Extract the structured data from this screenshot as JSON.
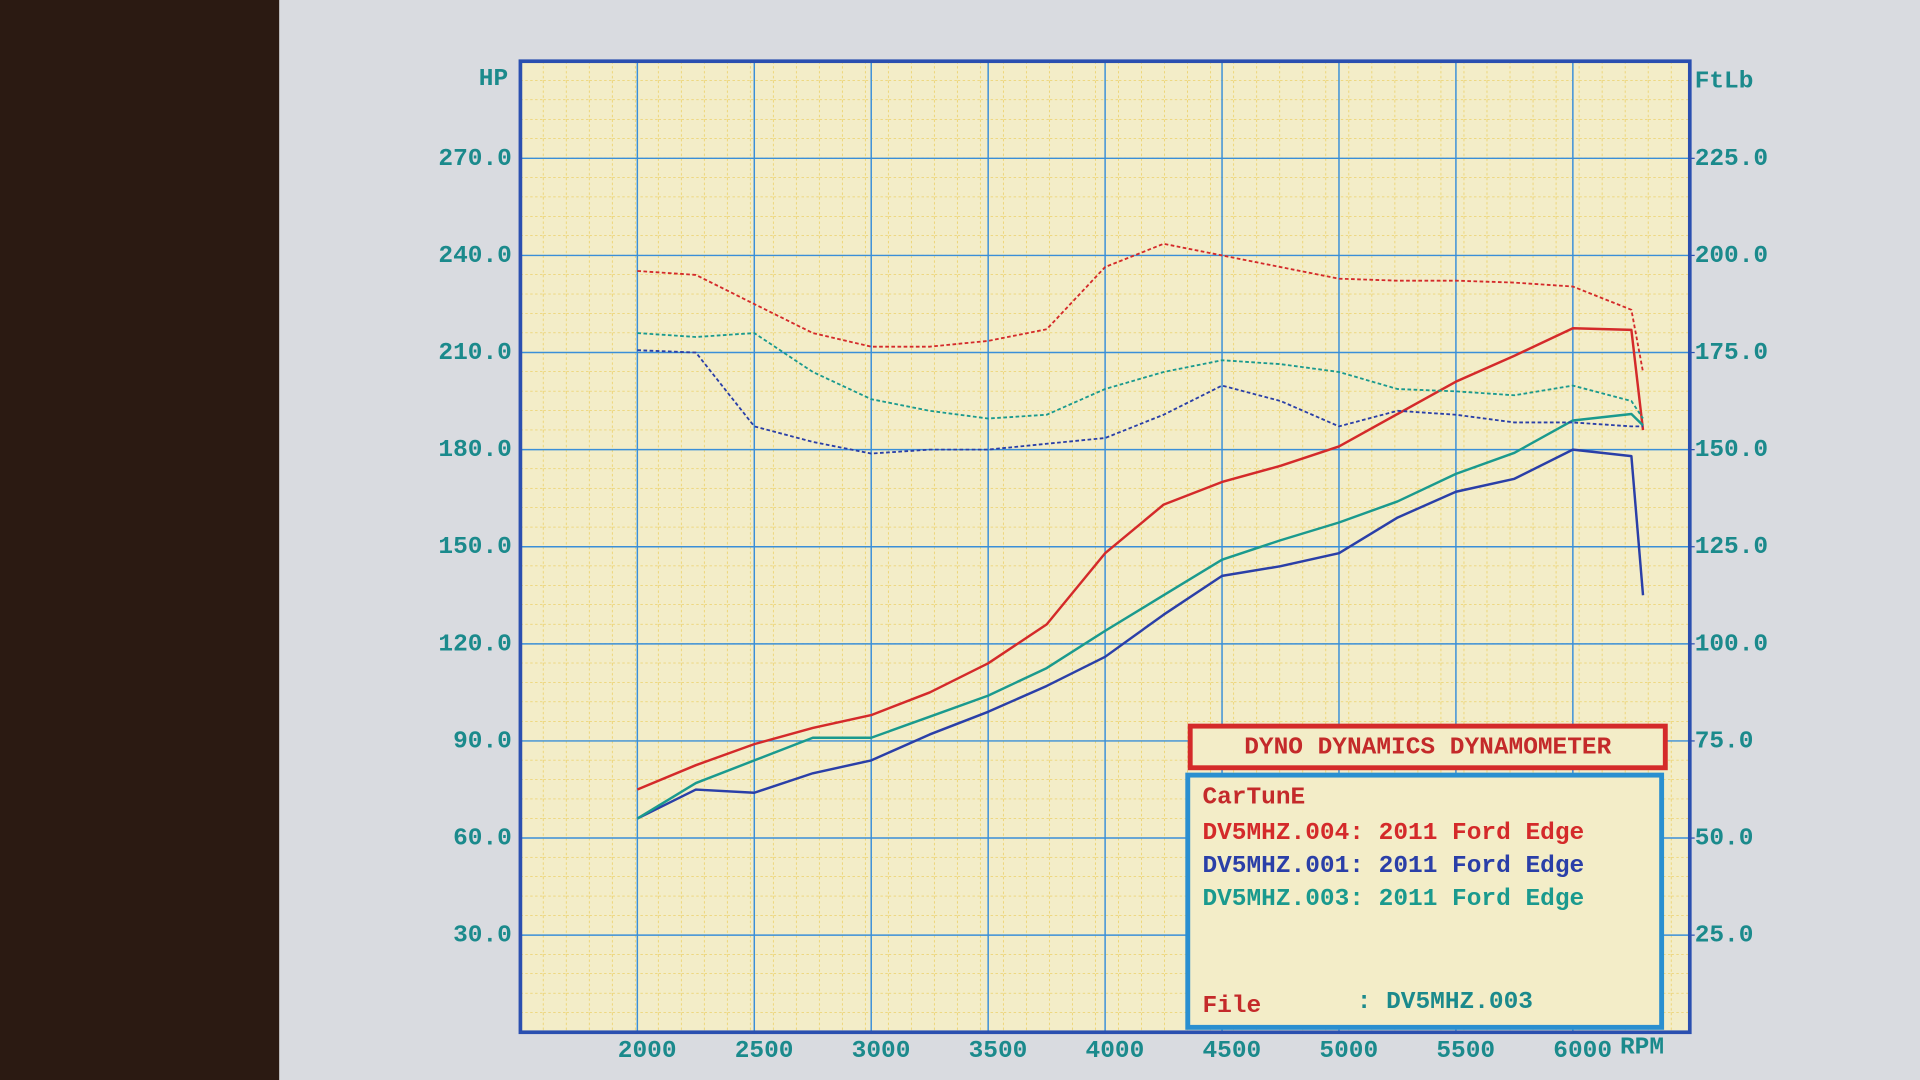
{
  "chart_data": {
    "type": "line",
    "y_label": "HP",
    "y2_label": "FtLb",
    "x_label": "RPM",
    "x": [
      2000,
      2250,
      2500,
      2750,
      3000,
      3250,
      3500,
      3750,
      4000,
      4250,
      4500,
      4750,
      5000,
      5250,
      5500,
      5750,
      6000,
      6250,
      6300
    ],
    "xlim": [
      1500,
      6500
    ],
    "xticks": [
      2000,
      2500,
      3000,
      3500,
      4000,
      4500,
      5000,
      5500,
      6000
    ],
    "ylim": [
      0,
      300
    ],
    "yticks": [
      {
        "value": 30,
        "label": "30.0"
      },
      {
        "value": 60,
        "label": "60.0"
      },
      {
        "value": 90,
        "label": "90.0"
      },
      {
        "value": 120,
        "label": "120.0"
      },
      {
        "value": 150,
        "label": "150.0"
      },
      {
        "value": 180,
        "label": "180.0"
      },
      {
        "value": 210,
        "label": "210.0"
      },
      {
        "value": 240,
        "label": "240.0"
      },
      {
        "value": 270,
        "label": "270.0"
      }
    ],
    "y2lim": [
      0,
      250
    ],
    "y2ticks": [
      {
        "value": 25,
        "label": "25.0"
      },
      {
        "value": 50,
        "label": "50.0"
      },
      {
        "value": 75,
        "label": "75.0"
      },
      {
        "value": 100,
        "label": "100.0"
      },
      {
        "value": 125,
        "label": "125.0"
      },
      {
        "value": 150,
        "label": "150.0"
      },
      {
        "value": 175,
        "label": "175.0"
      },
      {
        "value": 200,
        "label": "200.0"
      },
      {
        "value": 225,
        "label": "225.0"
      }
    ],
    "grid": true,
    "legend_title": "DYNO DYNAMICS DYNAMOMETER",
    "legend_subtitle": "CarTunE",
    "file_label": "File",
    "file_value": ": DV5MHZ.003",
    "series": [
      {
        "name": "DV5MHZ.004: 2011 Ford Edge",
        "color": "#d42a2a",
        "values": [
          75,
          82.5,
          89,
          94,
          98,
          105,
          114,
          126,
          148,
          163,
          170,
          175,
          181,
          191,
          201,
          209,
          217.5,
          217,
          186
        ]
      },
      {
        "name": "DV5MHZ.001: 2011 Ford Edge",
        "color": "#2a3fa8",
        "values": [
          66,
          75,
          74,
          80,
          84,
          92,
          99,
          107,
          116,
          129,
          141,
          144,
          148,
          159,
          167,
          171,
          180,
          178,
          135
        ]
      },
      {
        "name": "DV5MHZ.003: 2011 Ford Edge",
        "color": "#1a9a8e",
        "values": [
          66,
          77,
          84,
          91,
          91,
          97.5,
          104,
          112.5,
          124,
          135,
          146,
          152,
          157.5,
          164,
          172.5,
          179,
          189,
          191,
          187.5
        ]
      },
      {
        "color": "#d42a2a",
        "axis": "y2",
        "style": "dashed",
        "values": [
          196,
          195,
          187.5,
          180,
          176.5,
          176.5,
          178,
          181,
          197,
          203,
          200,
          197,
          194,
          193.5,
          193.5,
          193,
          192,
          186,
          170
        ]
      },
      {
        "color": "#2a3fa8",
        "axis": "y2",
        "style": "dashed",
        "values": [
          175.6,
          175,
          156,
          152,
          149,
          150,
          150,
          151.5,
          153,
          159,
          166.5,
          162.5,
          156,
          160,
          159,
          157,
          157,
          156,
          156
        ]
      },
      {
        "color": "#1a9a8e",
        "axis": "y2",
        "style": "dashed",
        "values": [
          180,
          179,
          180,
          170,
          163,
          160,
          158,
          159,
          165.6,
          170,
          173,
          172,
          170,
          165.6,
          165,
          164,
          166.5,
          162.5,
          158
        ]
      }
    ]
  }
}
